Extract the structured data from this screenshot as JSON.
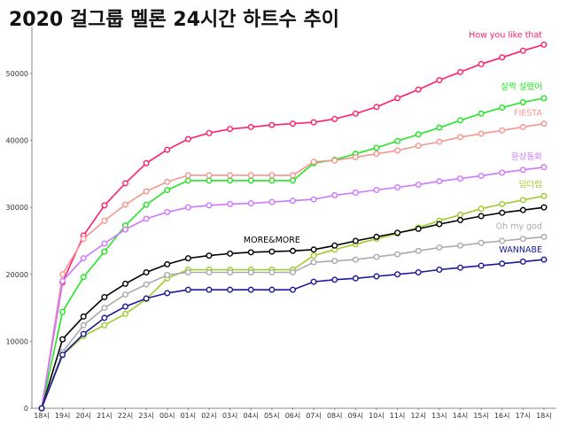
{
  "chart_data": {
    "type": "line",
    "title": "2020 걸그룹 멜론 24시간 하트수 추이",
    "xlabel": "",
    "ylabel": "",
    "x": [
      "18시",
      "19시",
      "20시",
      "21시",
      "22시",
      "23시",
      "00시",
      "01시",
      "02시",
      "03시",
      "04시",
      "05시",
      "06시",
      "07시",
      "08시",
      "09시",
      "10시",
      "11시",
      "12시",
      "13시",
      "14시",
      "15시",
      "16시",
      "17시",
      "18시"
    ],
    "ylim": [
      0,
      57000
    ],
    "yticks": [
      0,
      10000,
      20000,
      30000,
      40000,
      50000
    ],
    "grid": false,
    "series": [
      {
        "name": "How you like that",
        "color": "#ff1f6e",
        "values": [
          0,
          18800,
          25800,
          30300,
          33600,
          36600,
          38600,
          40200,
          41100,
          41700,
          42000,
          42300,
          42500,
          42700,
          43200,
          44000,
          45000,
          46300,
          47600,
          49000,
          50200,
          51400,
          52400,
          53400,
          54300
        ]
      },
      {
        "name": "살짝 설렜어",
        "color": "#22e622",
        "values": [
          0,
          14400,
          19600,
          23400,
          27300,
          30400,
          32600,
          34000,
          34000,
          34000,
          34000,
          34000,
          34000,
          36600,
          37100,
          38000,
          38900,
          39900,
          40900,
          41900,
          43000,
          44000,
          44900,
          45700,
          46300
        ]
      },
      {
        "name": "FIESTA",
        "color": "#f7948f",
        "values": [
          0,
          20000,
          25300,
          28000,
          30400,
          32400,
          33800,
          34800,
          34800,
          34800,
          34800,
          34800,
          34800,
          36800,
          37000,
          37500,
          38000,
          38500,
          39200,
          39800,
          40500,
          41000,
          41500,
          42000,
          42500
        ]
      },
      {
        "name": "환상동화",
        "color": "#cc77ff",
        "values": [
          0,
          19000,
          22400,
          24600,
          26700,
          28300,
          29300,
          30000,
          30300,
          30500,
          30600,
          30800,
          31000,
          31200,
          31800,
          32200,
          32600,
          33000,
          33400,
          33900,
          34300,
          34700,
          35200,
          35600,
          36000
        ]
      },
      {
        "name": "덤더럼",
        "color": "#9ecc2c",
        "values": [
          0,
          7900,
          10800,
          12400,
          14100,
          16300,
          19400,
          20700,
          20700,
          20700,
          20700,
          20700,
          20700,
          22800,
          23700,
          24500,
          25300,
          26100,
          27000,
          28000,
          28900,
          29800,
          30500,
          31100,
          31700
        ]
      },
      {
        "name": "MORE&MORE",
        "color": "#000000",
        "values": [
          0,
          10300,
          13700,
          16600,
          18600,
          20300,
          21500,
          22400,
          22800,
          23100,
          23300,
          23400,
          23500,
          23700,
          24300,
          25000,
          25600,
          26200,
          26800,
          27500,
          28100,
          28700,
          29200,
          29600,
          30000
        ]
      },
      {
        "name": "Oh my god",
        "color": "#aaaaaa",
        "values": [
          0,
          8400,
          12400,
          15000,
          17000,
          18500,
          19900,
          20300,
          20300,
          20300,
          20300,
          20300,
          20300,
          21800,
          22000,
          22200,
          22600,
          23000,
          23500,
          24000,
          24300,
          24700,
          25000,
          25300,
          25600
        ]
      },
      {
        "name": "WANNABE",
        "color": "#1a1a99",
        "values": [
          0,
          8000,
          11100,
          13500,
          15200,
          16400,
          17200,
          17700,
          17700,
          17700,
          17700,
          17700,
          17700,
          18900,
          19200,
          19400,
          19700,
          20000,
          20300,
          20700,
          21000,
          21300,
          21600,
          21900,
          22200
        ]
      }
    ]
  }
}
